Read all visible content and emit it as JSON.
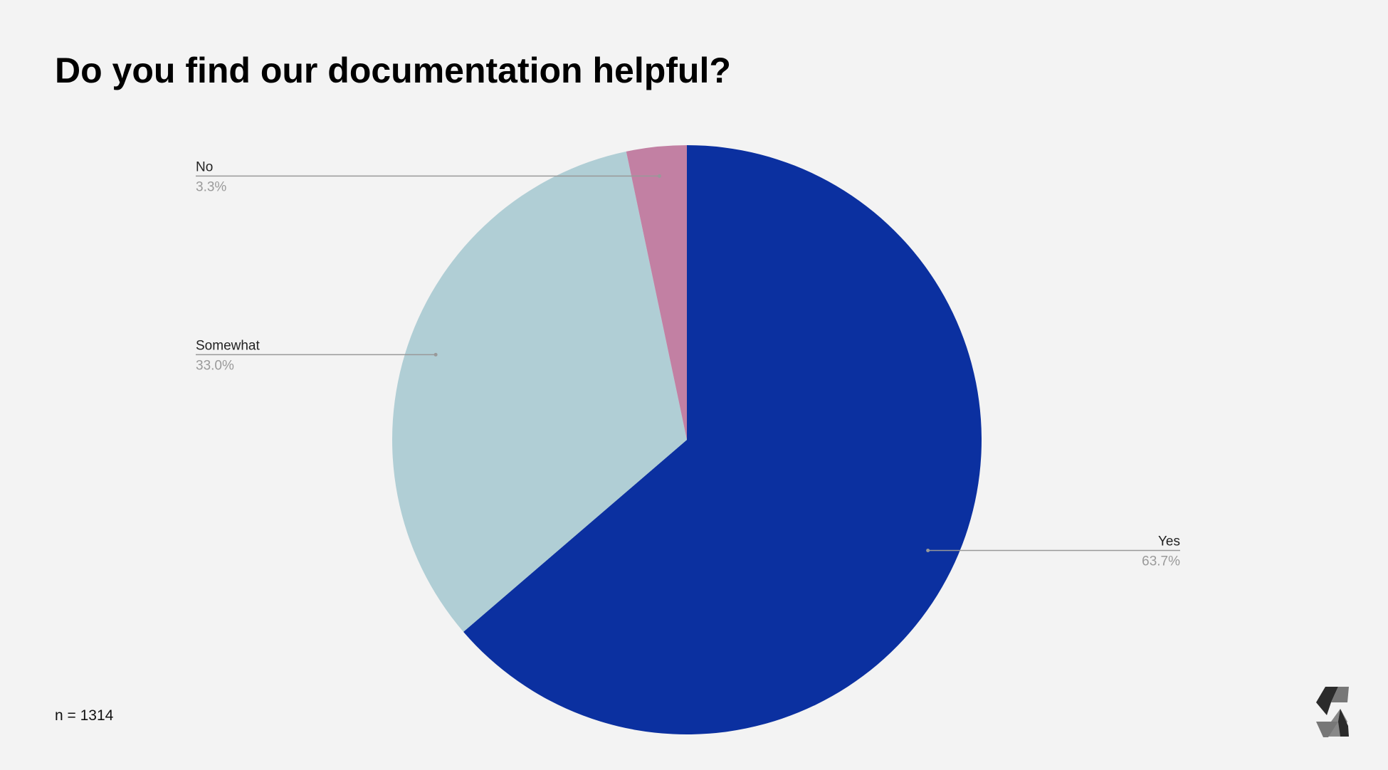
{
  "chart_data": {
    "type": "pie",
    "title": "Do you find our documentation helpful?",
    "note": "n = 1314",
    "categories": [
      "Yes",
      "Somewhat",
      "No"
    ],
    "values": [
      63.7,
      33.0,
      3.3
    ],
    "value_labels": [
      "63.7%",
      "33.0%",
      "3.3%"
    ],
    "colors": [
      "#0b30a0",
      "#b0ced5",
      "#c280a3"
    ]
  }
}
